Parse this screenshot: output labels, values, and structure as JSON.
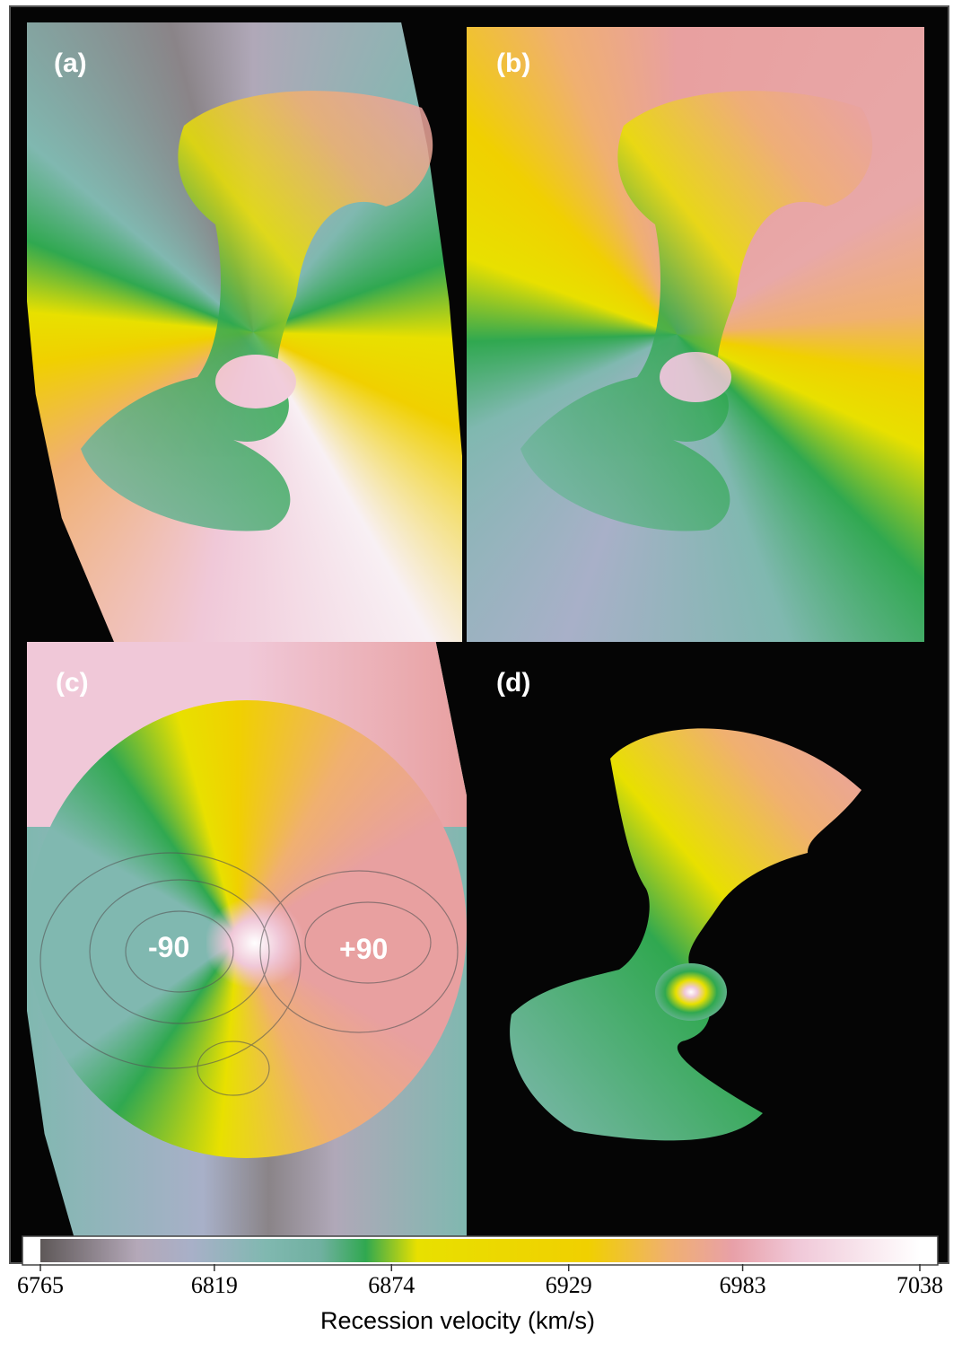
{
  "chart_data": {
    "type": "colormap",
    "panels": [
      {
        "label": "(a)"
      },
      {
        "label": "(b)"
      },
      {
        "label": "(c)",
        "annotations": [
          "-90",
          "+90"
        ]
      },
      {
        "label": "(d)"
      }
    ],
    "colorbar": {
      "xlabel": "Recession velocity (km/s)",
      "xlim": [
        6765,
        7038
      ],
      "xticks": [
        6765,
        6819,
        6874,
        6929,
        6983,
        7038
      ],
      "stops": [
        {
          "value": 6765,
          "color": "#5e5858"
        },
        {
          "value": 6795,
          "color": "#b4a8b8"
        },
        {
          "value": 6812,
          "color": "#a8b0c8"
        },
        {
          "value": 6835,
          "color": "#80b8b0"
        },
        {
          "value": 6852,
          "color": "#70b0a0"
        },
        {
          "value": 6866,
          "color": "#30a850"
        },
        {
          "value": 6882,
          "color": "#e8e000"
        },
        {
          "value": 6935,
          "color": "#f0d000"
        },
        {
          "value": 6960,
          "color": "#f0b070"
        },
        {
          "value": 6980,
          "color": "#e8a0a8"
        },
        {
          "value": 7000,
          "color": "#f0c8d8"
        },
        {
          "value": 7038,
          "color": "#ffffff"
        }
      ]
    }
  }
}
